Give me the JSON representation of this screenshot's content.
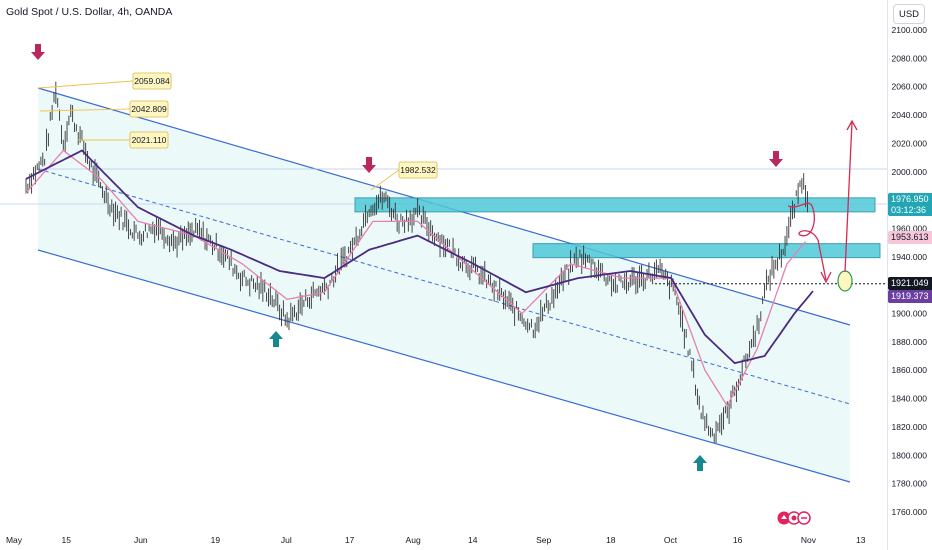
{
  "header": {
    "title": "Gold Spot / U.S. Dollar, 4h, OANDA",
    "currency_button": "USD"
  },
  "price_tags": {
    "current_price": "1976.950",
    "countdown": "03:12:36",
    "ma_fast": "1953.613",
    "dotted_level": "1921.049",
    "ma_slow": "1919.373"
  },
  "annotations": {
    "label_1": "2059.084",
    "label_2": "2042.809",
    "label_3": "2021.110",
    "label_4": "1982.532"
  },
  "colors": {
    "channel_blue": "#3b6bd6",
    "channel_fill": "#e4f7f7",
    "price_bars": "#333333",
    "ma_fast": "#e77fb0",
    "ma_slow": "#4b2a82",
    "zone_fill": "#4fc8d8",
    "arrow_down": "#b8285e",
    "arrow_up": "#17888f",
    "projection": "#d42a55",
    "label_bg": "#fff7c2"
  },
  "chart_data": {
    "type": "line",
    "symbol": "Gold Spot / U.S. Dollar, 4h, OANDA",
    "x_tick_labels": [
      "May",
      "15",
      "Jun",
      "19",
      "Jul",
      "17",
      "Aug",
      "14",
      "Sep",
      "18",
      "Oct",
      "16",
      "Nov",
      "13"
    ],
    "y_tick_labels": [
      "2100.000",
      "2080.000",
      "2060.000",
      "2040.000",
      "2020.000",
      "2000.000",
      "1980.000",
      "1960.000",
      "1940.000",
      "1920.000",
      "1900.000",
      "1880.000",
      "1860.000",
      "1840.000",
      "1820.000",
      "1800.000",
      "1780.000",
      "1760.000"
    ],
    "ylim": [
      1756,
      2108
    ],
    "x_unit": "trading weeks since May 1",
    "price_approx": [
      {
        "x": 0.0,
        "y": 1990
      },
      {
        "x": 0.5,
        "y": 2010
      },
      {
        "x": 0.8,
        "y": 2059
      },
      {
        "x": 1.0,
        "y": 2020
      },
      {
        "x": 1.2,
        "y": 2042
      },
      {
        "x": 1.5,
        "y": 2021
      },
      {
        "x": 1.8,
        "y": 2000
      },
      {
        "x": 2.3,
        "y": 1975
      },
      {
        "x": 3.0,
        "y": 1955
      },
      {
        "x": 3.5,
        "y": 1962
      },
      {
        "x": 4.0,
        "y": 1950
      },
      {
        "x": 4.6,
        "y": 1958
      },
      {
        "x": 5.2,
        "y": 1945
      },
      {
        "x": 5.8,
        "y": 1925
      },
      {
        "x": 6.5,
        "y": 1915
      },
      {
        "x": 7.0,
        "y": 1895
      },
      {
        "x": 7.6,
        "y": 1912
      },
      {
        "x": 8.1,
        "y": 1920
      },
      {
        "x": 8.8,
        "y": 1950
      },
      {
        "x": 9.2,
        "y": 1975
      },
      {
        "x": 9.6,
        "y": 1982
      },
      {
        "x": 10.0,
        "y": 1965
      },
      {
        "x": 10.5,
        "y": 1970
      },
      {
        "x": 11.0,
        "y": 1955
      },
      {
        "x": 11.6,
        "y": 1940
      },
      {
        "x": 12.3,
        "y": 1925
      },
      {
        "x": 13.0,
        "y": 1905
      },
      {
        "x": 13.6,
        "y": 1890
      },
      {
        "x": 14.3,
        "y": 1920
      },
      {
        "x": 14.8,
        "y": 1940
      },
      {
        "x": 15.2,
        "y": 1935
      },
      {
        "x": 15.8,
        "y": 1920
      },
      {
        "x": 16.5,
        "y": 1925
      },
      {
        "x": 17.0,
        "y": 1930
      },
      {
        "x": 17.4,
        "y": 1915
      },
      {
        "x": 17.8,
        "y": 1870
      },
      {
        "x": 18.1,
        "y": 1830
      },
      {
        "x": 18.4,
        "y": 1815
      },
      {
        "x": 18.8,
        "y": 1830
      },
      {
        "x": 19.2,
        "y": 1860
      },
      {
        "x": 19.6,
        "y": 1890
      },
      {
        "x": 19.9,
        "y": 1925
      },
      {
        "x": 20.3,
        "y": 1945
      },
      {
        "x": 20.6,
        "y": 1975
      },
      {
        "x": 20.8,
        "y": 1995
      },
      {
        "x": 21.0,
        "y": 1977
      }
    ],
    "ma_fast_approx": [
      {
        "x": 0.0,
        "y": 1985
      },
      {
        "x": 1.0,
        "y": 2015
      },
      {
        "x": 2.0,
        "y": 1995
      },
      {
        "x": 3.0,
        "y": 1965
      },
      {
        "x": 4.5,
        "y": 1955
      },
      {
        "x": 5.8,
        "y": 1935
      },
      {
        "x": 7.0,
        "y": 1910
      },
      {
        "x": 8.0,
        "y": 1915
      },
      {
        "x": 9.3,
        "y": 1965
      },
      {
        "x": 10.5,
        "y": 1965
      },
      {
        "x": 12.0,
        "y": 1930
      },
      {
        "x": 13.3,
        "y": 1900
      },
      {
        "x": 14.6,
        "y": 1935
      },
      {
        "x": 16.0,
        "y": 1925
      },
      {
        "x": 17.3,
        "y": 1925
      },
      {
        "x": 18.2,
        "y": 1860
      },
      {
        "x": 18.8,
        "y": 1835
      },
      {
        "x": 19.6,
        "y": 1875
      },
      {
        "x": 20.4,
        "y": 1935
      },
      {
        "x": 21.0,
        "y": 1954
      }
    ],
    "ma_slow_approx": [
      {
        "x": 0.0,
        "y": 1995
      },
      {
        "x": 1.5,
        "y": 2015
      },
      {
        "x": 3.0,
        "y": 1975
      },
      {
        "x": 4.5,
        "y": 1955
      },
      {
        "x": 5.5,
        "y": 1945
      },
      {
        "x": 6.8,
        "y": 1930
      },
      {
        "x": 8.0,
        "y": 1925
      },
      {
        "x": 9.2,
        "y": 1945
      },
      {
        "x": 10.5,
        "y": 1955
      },
      {
        "x": 12.0,
        "y": 1935
      },
      {
        "x": 13.4,
        "y": 1915
      },
      {
        "x": 14.8,
        "y": 1925
      },
      {
        "x": 16.2,
        "y": 1930
      },
      {
        "x": 17.3,
        "y": 1925
      },
      {
        "x": 18.2,
        "y": 1885
      },
      {
        "x": 19.0,
        "y": 1865
      },
      {
        "x": 19.8,
        "y": 1870
      },
      {
        "x": 20.6,
        "y": 1900
      },
      {
        "x": 21.2,
        "y": 1919
      }
    ],
    "levels": {
      "resistance_zone": [
        1973,
        1983
      ],
      "support_zone": [
        1940,
        1950
      ],
      "dotted_line": 1921
    },
    "grid": false,
    "legend": "none"
  }
}
